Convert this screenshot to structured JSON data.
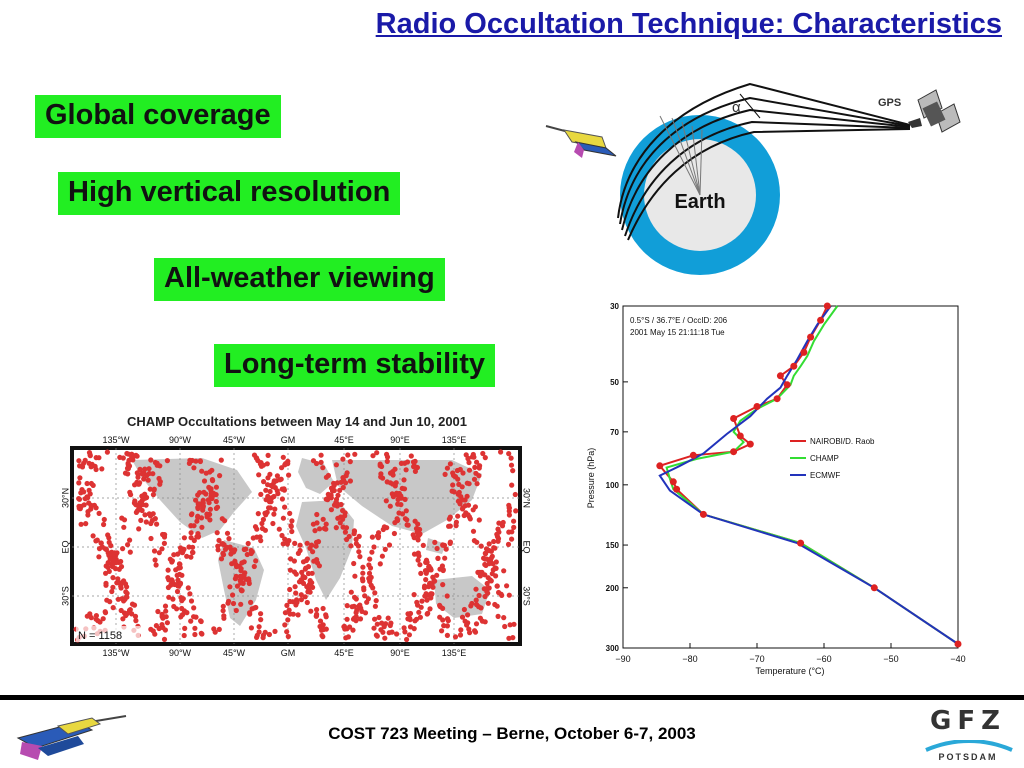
{
  "title": "Radio Occultation Technique: Characteristics",
  "features": [
    "Global coverage",
    "High vertical resolution",
    "All-weather viewing",
    "Long-term stability"
  ],
  "geometry_diagram": {
    "earth_label": "Earth",
    "gps_label": "GPS",
    "alpha_label": "α"
  },
  "map": {
    "title": "CHAMP Occultations between May 14 and Jun 10, 2001",
    "lon_labels": [
      "135°W",
      "90°W",
      "45°W",
      "GM",
      "45°E",
      "90°E",
      "135°E"
    ],
    "lat_labels": [
      "30°N",
      "EQ",
      "30°S"
    ],
    "count_label": "N = 1158",
    "colors": {
      "points": "#dd3333",
      "land": "#c8c8c8"
    }
  },
  "profile_chart": {
    "annotation_lines": [
      "0.5°S / 36.7°E / OccID: 206",
      "2001 May 15 21:11:18 Tue"
    ],
    "chart_data": {
      "type": "line",
      "xlabel": "Temperature (°C)",
      "ylabel": "Pressure (hPa)",
      "xlim": [
        -90,
        -40
      ],
      "ylim": [
        300,
        30
      ],
      "y_scale": "log",
      "xticks": [
        -90,
        -80,
        -70,
        -60,
        -50,
        -40
      ],
      "yticks": [
        30,
        50,
        70,
        100,
        150,
        200,
        300
      ],
      "legend_position": "middle-right",
      "series": [
        {
          "name": "NAIROBI/D. Raob",
          "color": "#dd2222",
          "markers": true,
          "points": [
            [
              -59.5,
              30
            ],
            [
              -60.5,
              33
            ],
            [
              -62,
              37
            ],
            [
              -63,
              41
            ],
            [
              -64.5,
              45
            ],
            [
              -66.5,
              48
            ],
            [
              -65.5,
              51
            ],
            [
              -67,
              56
            ],
            [
              -70,
              59
            ],
            [
              -73.5,
              64
            ],
            [
              -72.5,
              72
            ],
            [
              -71,
              76
            ],
            [
              -73.5,
              80
            ],
            [
              -79.5,
              82
            ],
            [
              -84.5,
              88
            ],
            [
              -82.5,
              98
            ],
            [
              -82,
              103
            ],
            [
              -78,
              122
            ],
            [
              -63.5,
              148
            ],
            [
              -52.5,
              200
            ],
            [
              -40,
              292
            ]
          ]
        },
        {
          "name": "CHAMP",
          "color": "#33dd33",
          "markers": false,
          "points": [
            [
              -58,
              30
            ],
            [
              -60,
              34
            ],
            [
              -61.5,
              38
            ],
            [
              -62.5,
              42
            ],
            [
              -63.5,
              45
            ],
            [
              -64.5,
              48
            ],
            [
              -65,
              51
            ],
            [
              -67,
              56
            ],
            [
              -70,
              60
            ],
            [
              -72.5,
              65
            ],
            [
              -73.5,
              70
            ],
            [
              -72,
              75
            ],
            [
              -73.5,
              80
            ],
            [
              -79,
              84
            ],
            [
              -83.5,
              89
            ],
            [
              -83,
              96
            ],
            [
              -82.5,
              103
            ],
            [
              -78,
              122
            ],
            [
              -63.5,
              148
            ],
            [
              -52.5,
              200
            ],
            [
              -40,
              292
            ]
          ]
        },
        {
          "name": "ECMWF",
          "color": "#2233bb",
          "markers": false,
          "points": [
            [
              -59,
              30
            ],
            [
              -61,
              34
            ],
            [
              -62.5,
              38
            ],
            [
              -64,
              43
            ],
            [
              -65.5,
              48
            ],
            [
              -66.5,
              52
            ],
            [
              -68.5,
              56
            ],
            [
              -71,
              63
            ],
            [
              -74.5,
              71
            ],
            [
              -78,
              81
            ],
            [
              -81.5,
              88
            ],
            [
              -84.5,
              94
            ],
            [
              -83,
              104
            ],
            [
              -78,
              122
            ],
            [
              -64,
              148
            ],
            [
              -52.5,
              200
            ],
            [
              -40,
              292
            ]
          ]
        }
      ]
    }
  },
  "footer": {
    "text": "COST 723 Meeting – Berne, October 6-7, 2003",
    "logo_letters": "GFZ",
    "logo_subtitle": "POTSDAM"
  }
}
